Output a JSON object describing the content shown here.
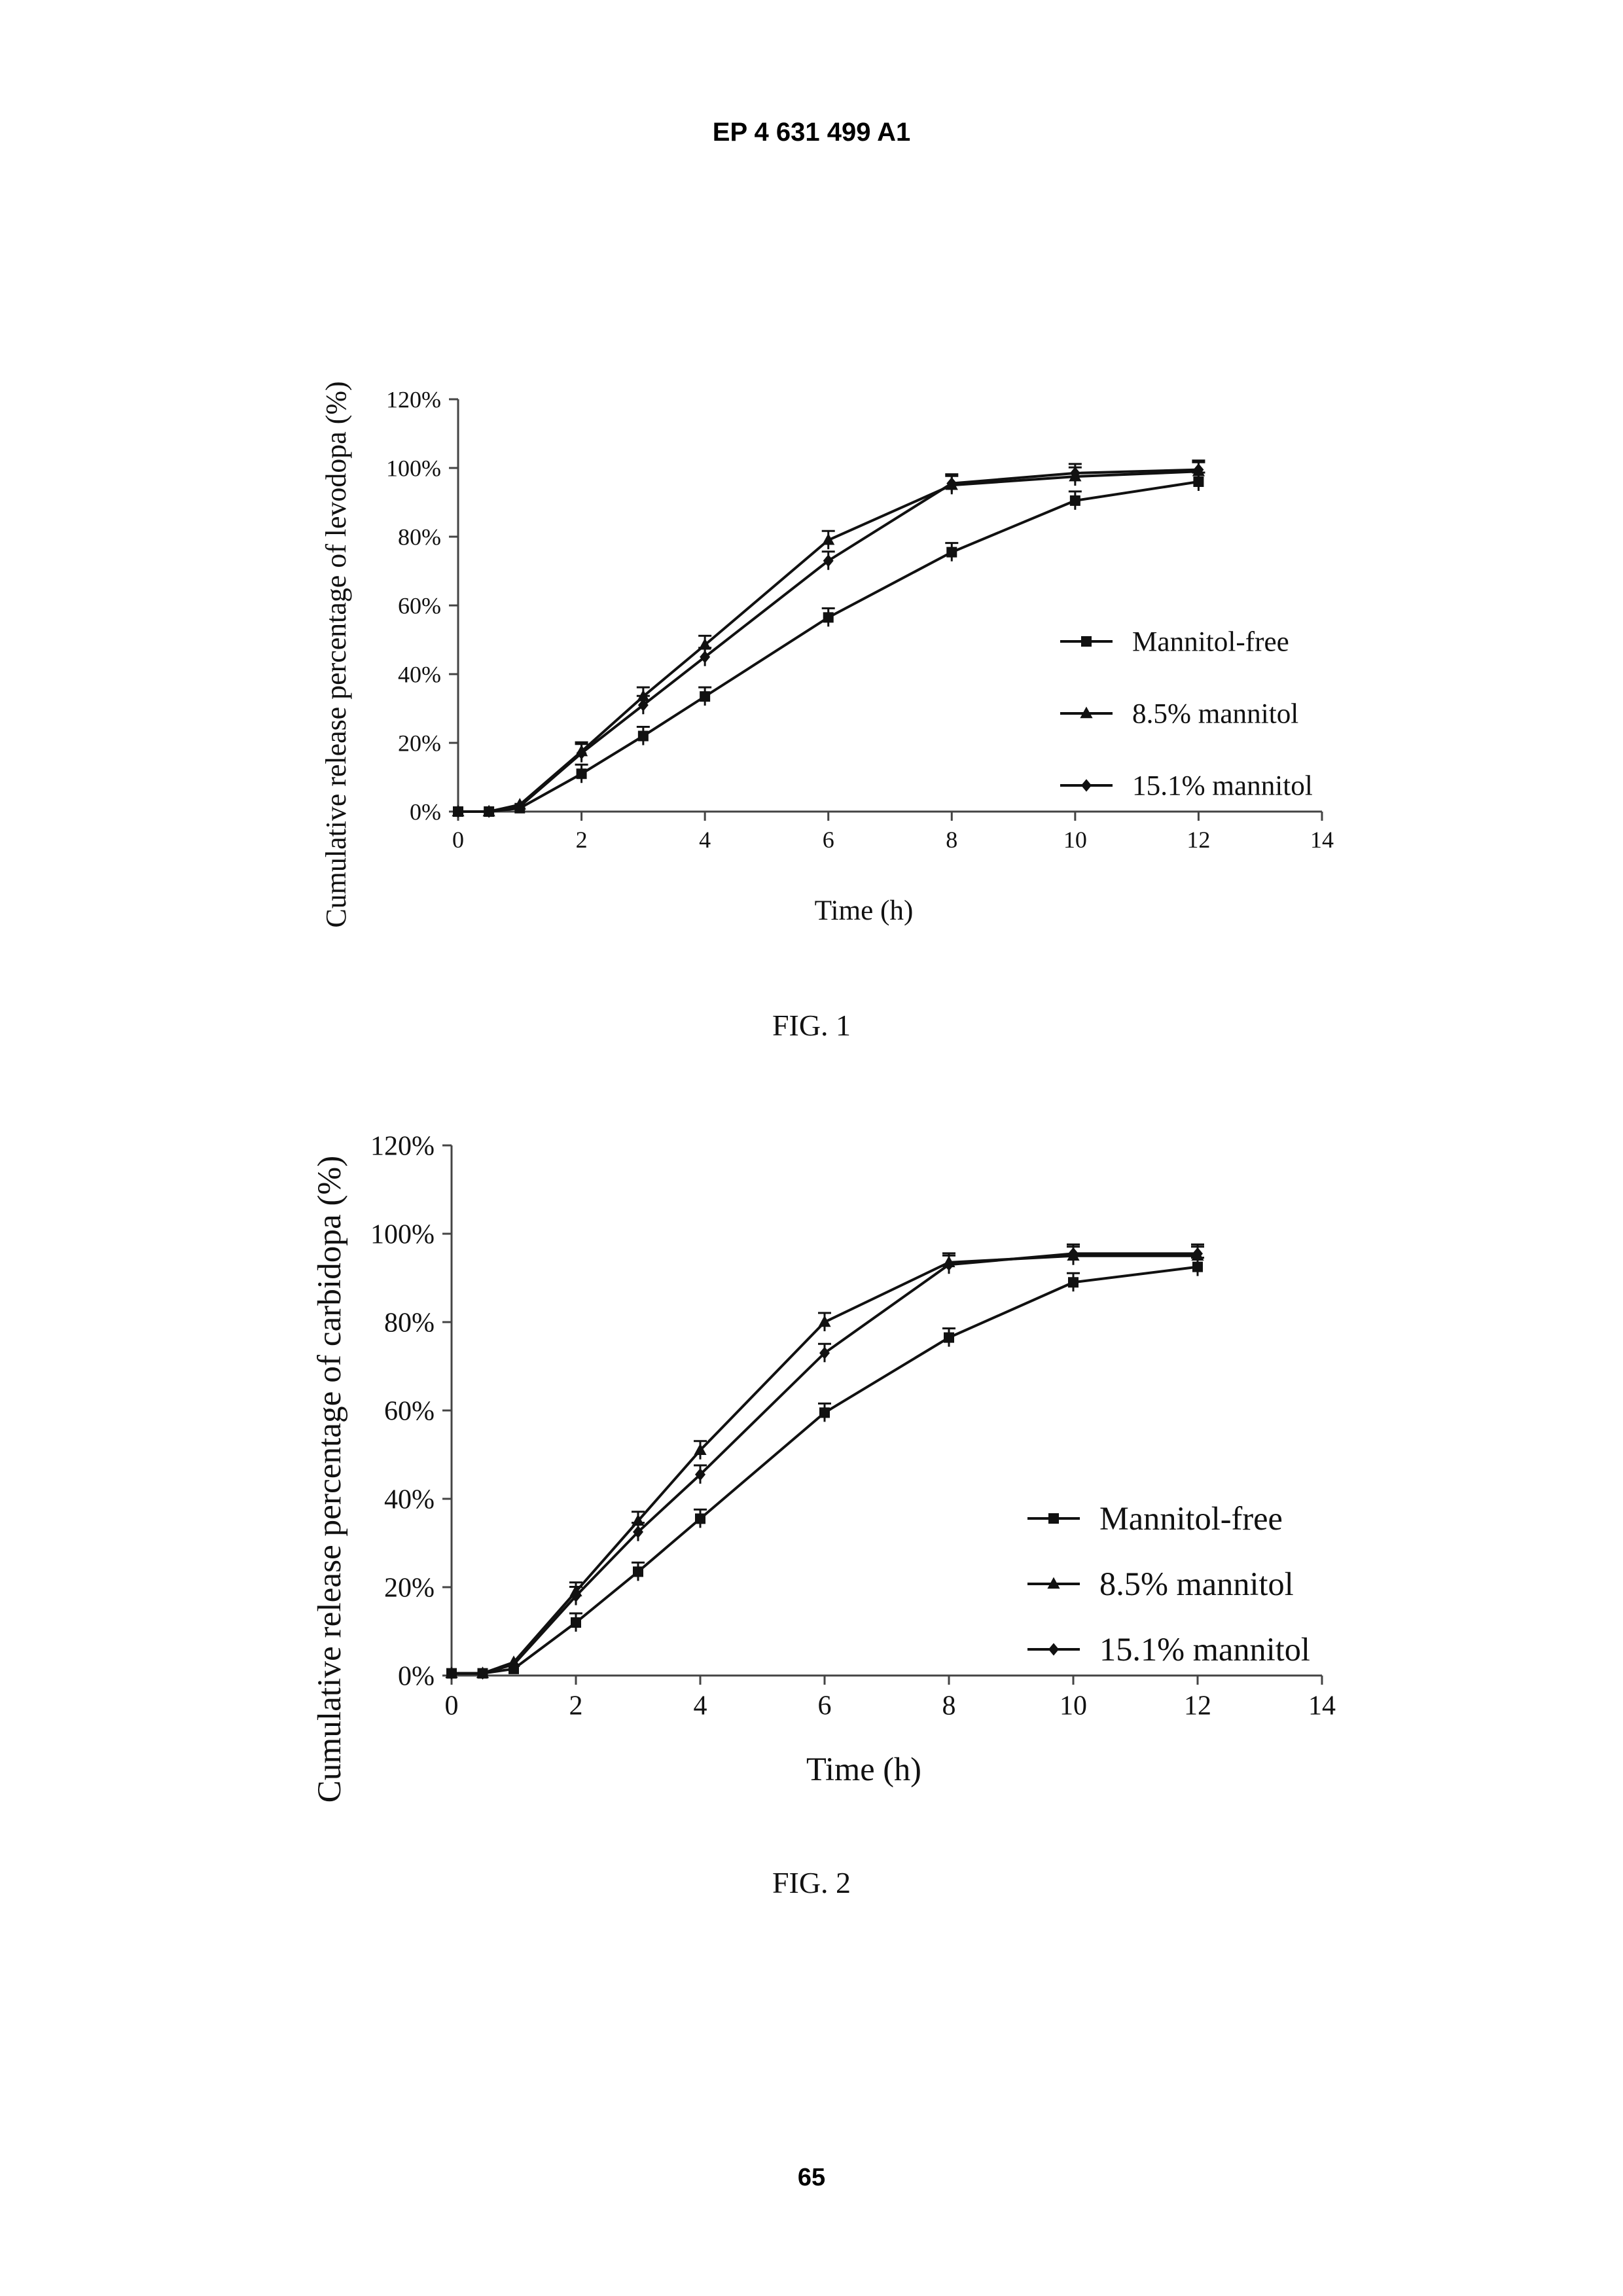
{
  "header": {
    "patent_number": "EP 4 631 499 A1"
  },
  "footer": {
    "page_number": "65"
  },
  "figures": [
    {
      "caption": "FIG. 1"
    },
    {
      "caption": "FIG. 2"
    }
  ],
  "chart_data": [
    {
      "type": "line",
      "title": "",
      "xlabel": "Time (h)",
      "ylabel": "Cumulative release percentage of levodopa (%)",
      "xlim": [
        0,
        14
      ],
      "ylim": [
        0,
        120
      ],
      "x_ticks": [
        "0",
        "2",
        "4",
        "6",
        "8",
        "10",
        "12",
        "14"
      ],
      "y_ticks": [
        "0%",
        "20%",
        "40%",
        "60%",
        "80%",
        "100%",
        "120%"
      ],
      "x": [
        0,
        0.5,
        1,
        2,
        3,
        4,
        6,
        8,
        10,
        12
      ],
      "series": [
        {
          "name": "Mannitol-free",
          "marker": "square",
          "values": [
            0,
            0,
            1,
            11,
            22,
            33.5,
            56.5,
            75.5,
            90.5,
            96
          ]
        },
        {
          "name": "8.5% mannitol",
          "marker": "triangle",
          "values": [
            0,
            0,
            2,
            17.5,
            33.5,
            48.5,
            79,
            95,
            97.5,
            99
          ]
        },
        {
          "name": "15.1% mannitol",
          "marker": "diamond",
          "values": [
            0,
            0,
            1.5,
            17,
            31,
            45,
            73,
            95.5,
            98.5,
            99.5
          ]
        }
      ],
      "legend": "right-center",
      "grid": false
    },
    {
      "type": "line",
      "title": "",
      "xlabel": "Time (h)",
      "ylabel": "Cumulative release percentage of carbidopa (%)",
      "xlim": [
        0,
        14
      ],
      "ylim": [
        0,
        120
      ],
      "x_ticks": [
        "0",
        "2",
        "4",
        "6",
        "8",
        "10",
        "12",
        "14"
      ],
      "y_ticks": [
        "0%",
        "20%",
        "40%",
        "60%",
        "80%",
        "100%",
        "120%"
      ],
      "x": [
        0,
        0.5,
        1,
        2,
        3,
        4,
        6,
        8,
        10,
        12
      ],
      "series": [
        {
          "name": "Mannitol-free",
          "marker": "square",
          "values": [
            0.5,
            0.5,
            1.5,
            12,
            23.5,
            35.5,
            59.5,
            76.5,
            89,
            92.5
          ]
        },
        {
          "name": "8.5% mannitol",
          "marker": "triangle",
          "values": [
            0.5,
            0.5,
            3,
            19,
            35,
            51,
            80,
            93.5,
            95,
            95
          ]
        },
        {
          "name": "15.1% mannitol",
          "marker": "diamond",
          "values": [
            0.5,
            0.5,
            2.5,
            18,
            32.5,
            45.5,
            73,
            93,
            95.5,
            95.5
          ]
        }
      ],
      "legend": "right-center",
      "grid": false
    }
  ]
}
